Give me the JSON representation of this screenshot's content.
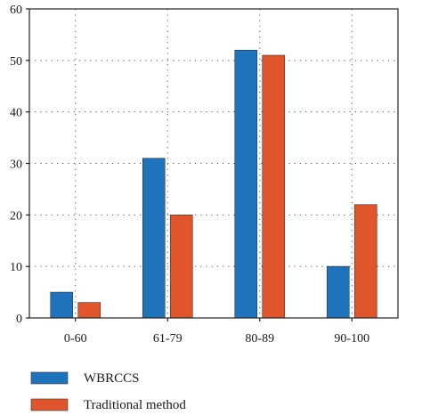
{
  "chart_data": {
    "type": "bar",
    "categories": [
      "0-60",
      "61-79",
      "80-89",
      "90-100"
    ],
    "series": [
      {
        "name": "WBRCCS",
        "values": [
          5,
          31,
          52,
          10
        ],
        "color": "#1f73bd"
      },
      {
        "name": "Traditional method",
        "values": [
          3,
          20,
          51,
          22
        ],
        "color": "#e0552b"
      }
    ],
    "ylim": [
      0,
      60
    ],
    "yticks": [
      0,
      10,
      20,
      30,
      40,
      50,
      60
    ],
    "title": "",
    "xlabel": "",
    "ylabel": "",
    "grid": "dotted",
    "legend_position": "bottom-left"
  }
}
